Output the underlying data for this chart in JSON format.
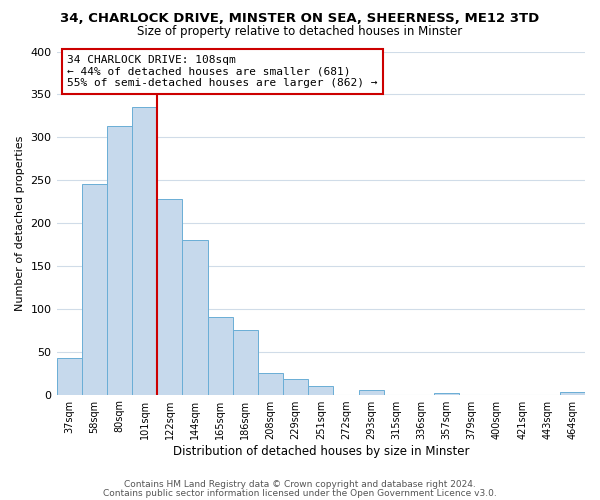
{
  "title": "34, CHARLOCK DRIVE, MINSTER ON SEA, SHEERNESS, ME12 3TD",
  "subtitle": "Size of property relative to detached houses in Minster",
  "xlabel": "Distribution of detached houses by size in Minster",
  "ylabel": "Number of detached properties",
  "categories": [
    "37sqm",
    "58sqm",
    "80sqm",
    "101sqm",
    "122sqm",
    "144sqm",
    "165sqm",
    "186sqm",
    "208sqm",
    "229sqm",
    "251sqm",
    "272sqm",
    "293sqm",
    "315sqm",
    "336sqm",
    "357sqm",
    "379sqm",
    "400sqm",
    "421sqm",
    "443sqm",
    "464sqm"
  ],
  "values": [
    43,
    246,
    313,
    335,
    228,
    180,
    91,
    75,
    25,
    18,
    10,
    0,
    5,
    0,
    0,
    2,
    0,
    0,
    0,
    0,
    3
  ],
  "bar_color": "#c6d9ec",
  "bar_edge_color": "#6aaed6",
  "annotation_box_text": "34 CHARLOCK DRIVE: 108sqm\n← 44% of detached houses are smaller (681)\n55% of semi-detached houses are larger (862) →",
  "annotation_box_color": "white",
  "annotation_box_edge_color": "#cc0000",
  "vline_color": "#cc0000",
  "vline_x": 3.5,
  "ylim": [
    0,
    400
  ],
  "yticks": [
    0,
    50,
    100,
    150,
    200,
    250,
    300,
    350,
    400
  ],
  "footer1": "Contains HM Land Registry data © Crown copyright and database right 2024.",
  "footer2": "Contains public sector information licensed under the Open Government Licence v3.0.",
  "background_color": "#ffffff",
  "grid_color": "#d0dce8"
}
